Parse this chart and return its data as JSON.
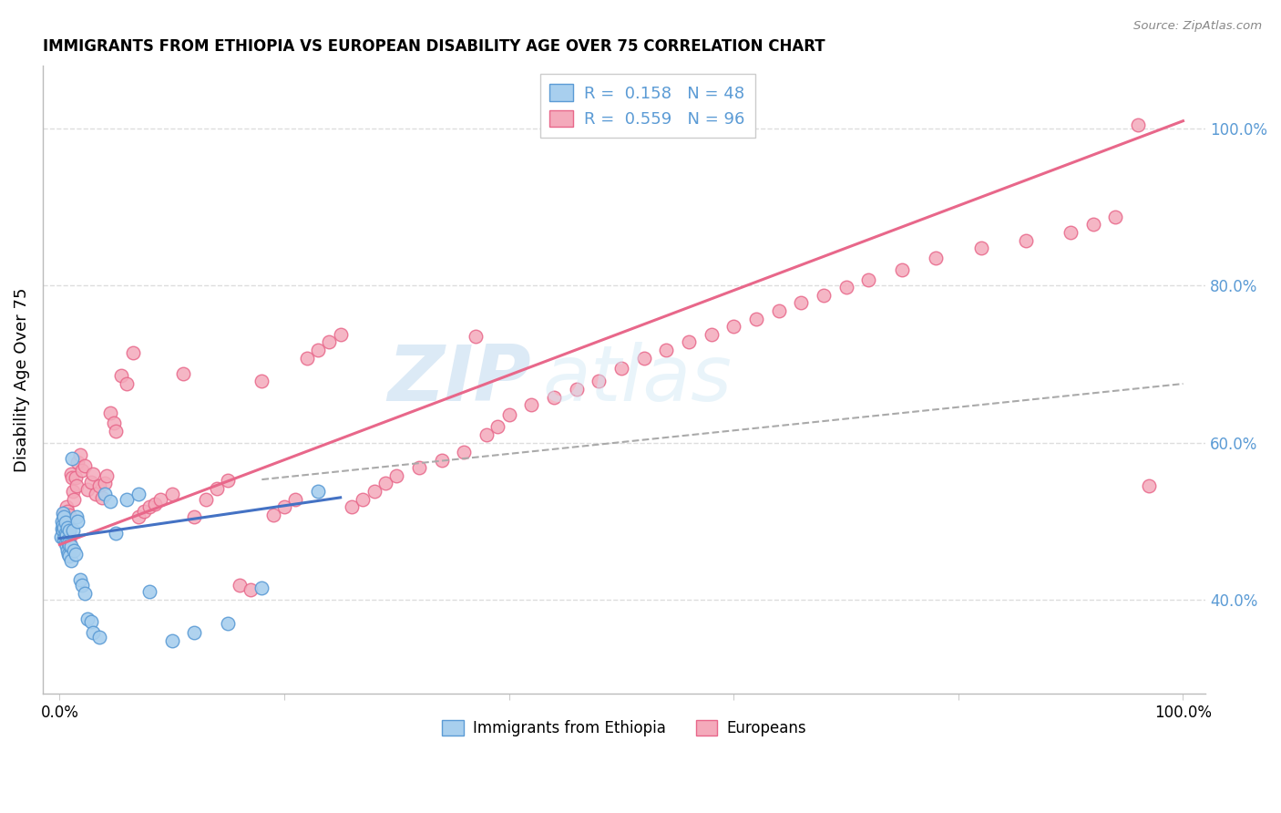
{
  "title": "IMMIGRANTS FROM ETHIOPIA VS EUROPEAN DISABILITY AGE OVER 75 CORRELATION CHART",
  "source": "Source: ZipAtlas.com",
  "ylabel": "Disability Age Over 75",
  "legend_label1": "Immigrants from Ethiopia",
  "legend_label2": "Europeans",
  "r1": 0.158,
  "n1": 48,
  "r2": 0.559,
  "n2": 96,
  "color_blue_fill": "#A8CFEE",
  "color_blue_edge": "#5B9BD5",
  "color_pink_fill": "#F4AABB",
  "color_pink_edge": "#E8678A",
  "line_blue_color": "#4472C4",
  "line_pink_color": "#E8678A",
  "dashed_line_color": "#AAAAAA",
  "bg_color": "#FFFFFF",
  "grid_color": "#DDDDDD",
  "ytick_color": "#5B9BD5",
  "ytick_labels": [
    "40.0%",
    "60.0%",
    "80.0%",
    "100.0%"
  ],
  "ytick_values": [
    0.4,
    0.6,
    0.8,
    1.0
  ],
  "watermark_zip": "ZIP",
  "watermark_atlas": "atlas",
  "title_fontsize": 12,
  "axis_fontsize": 12,
  "legend_fontsize": 13,
  "blue_x": [
    0.001,
    0.002,
    0.002,
    0.003,
    0.003,
    0.003,
    0.004,
    0.004,
    0.004,
    0.005,
    0.005,
    0.005,
    0.006,
    0.006,
    0.007,
    0.007,
    0.007,
    0.008,
    0.008,
    0.009,
    0.009,
    0.009,
    0.01,
    0.01,
    0.011,
    0.012,
    0.013,
    0.014,
    0.015,
    0.016,
    0.018,
    0.02,
    0.022,
    0.025,
    0.028,
    0.03,
    0.035,
    0.04,
    0.045,
    0.05,
    0.06,
    0.07,
    0.08,
    0.1,
    0.12,
    0.15,
    0.18,
    0.23
  ],
  "blue_y": [
    0.48,
    0.49,
    0.5,
    0.488,
    0.495,
    0.51,
    0.478,
    0.492,
    0.505,
    0.472,
    0.485,
    0.498,
    0.468,
    0.482,
    0.462,
    0.475,
    0.492,
    0.458,
    0.472,
    0.455,
    0.47,
    0.488,
    0.45,
    0.468,
    0.58,
    0.488,
    0.462,
    0.458,
    0.505,
    0.5,
    0.425,
    0.418,
    0.408,
    0.375,
    0.372,
    0.358,
    0.352,
    0.535,
    0.525,
    0.485,
    0.528,
    0.535,
    0.41,
    0.348,
    0.358,
    0.37,
    0.415,
    0.538
  ],
  "pink_x": [
    0.003,
    0.004,
    0.004,
    0.005,
    0.005,
    0.006,
    0.006,
    0.007,
    0.007,
    0.008,
    0.008,
    0.009,
    0.009,
    0.01,
    0.01,
    0.011,
    0.012,
    0.013,
    0.014,
    0.015,
    0.016,
    0.018,
    0.02,
    0.022,
    0.025,
    0.028,
    0.03,
    0.032,
    0.035,
    0.038,
    0.04,
    0.042,
    0.045,
    0.048,
    0.05,
    0.055,
    0.06,
    0.065,
    0.07,
    0.075,
    0.08,
    0.085,
    0.09,
    0.1,
    0.11,
    0.12,
    0.13,
    0.14,
    0.15,
    0.16,
    0.17,
    0.18,
    0.19,
    0.2,
    0.21,
    0.22,
    0.23,
    0.24,
    0.25,
    0.26,
    0.27,
    0.28,
    0.29,
    0.3,
    0.32,
    0.34,
    0.36,
    0.37,
    0.38,
    0.39,
    0.4,
    0.42,
    0.44,
    0.46,
    0.48,
    0.5,
    0.52,
    0.54,
    0.56,
    0.58,
    0.6,
    0.62,
    0.64,
    0.66,
    0.68,
    0.7,
    0.72,
    0.75,
    0.78,
    0.82,
    0.86,
    0.9,
    0.92,
    0.94,
    0.96,
    0.97
  ],
  "pink_y": [
    0.488,
    0.5,
    0.51,
    0.492,
    0.505,
    0.518,
    0.478,
    0.498,
    0.512,
    0.472,
    0.49,
    0.508,
    0.475,
    0.465,
    0.56,
    0.555,
    0.538,
    0.528,
    0.555,
    0.545,
    0.575,
    0.585,
    0.565,
    0.57,
    0.54,
    0.55,
    0.56,
    0.535,
    0.545,
    0.53,
    0.548,
    0.558,
    0.638,
    0.625,
    0.615,
    0.685,
    0.675,
    0.715,
    0.505,
    0.512,
    0.518,
    0.522,
    0.528,
    0.535,
    0.688,
    0.505,
    0.528,
    0.542,
    0.552,
    0.418,
    0.412,
    0.678,
    0.508,
    0.518,
    0.528,
    0.708,
    0.718,
    0.728,
    0.738,
    0.518,
    0.528,
    0.538,
    0.548,
    0.558,
    0.568,
    0.578,
    0.588,
    0.735,
    0.61,
    0.62,
    0.635,
    0.648,
    0.658,
    0.668,
    0.678,
    0.695,
    0.708,
    0.718,
    0.728,
    0.738,
    0.748,
    0.758,
    0.768,
    0.778,
    0.788,
    0.798,
    0.808,
    0.82,
    0.835,
    0.848,
    0.858,
    0.868,
    0.878,
    0.888,
    1.005,
    0.545
  ],
  "pink_line_x0": 0.0,
  "pink_line_y0": 0.47,
  "pink_line_x1": 1.0,
  "pink_line_y1": 1.01,
  "blue_line_x0": 0.0,
  "blue_line_y0": 0.478,
  "blue_line_x1": 0.25,
  "blue_line_y1": 0.53,
  "dash_line_x0": 0.18,
  "dash_line_y0": 0.553,
  "dash_line_x1": 1.0,
  "dash_line_y1": 0.675,
  "ylim_min": 0.28,
  "ylim_max": 1.08,
  "xlim_min": -0.015,
  "xlim_max": 1.02
}
